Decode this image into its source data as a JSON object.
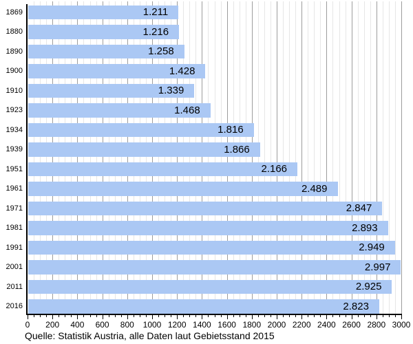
{
  "chart_data": {
    "type": "bar",
    "orientation": "horizontal",
    "title": "",
    "categories": [
      "1869",
      "1880",
      "1890",
      "1900",
      "1910",
      "1923",
      "1934",
      "1939",
      "1951",
      "1961",
      "1971",
      "1981",
      "1991",
      "2001",
      "2011",
      "2016"
    ],
    "values": [
      1211,
      1216,
      1258,
      1428,
      1339,
      1468,
      1816,
      1866,
      2166,
      2489,
      2847,
      2893,
      2949,
      2997,
      2925,
      2823
    ],
    "value_labels": [
      "1.211",
      "1.216",
      "1.258",
      "1.428",
      "1.339",
      "1.468",
      "1.816",
      "1.866",
      "2.166",
      "2.489",
      "2.847",
      "2.893",
      "2.949",
      "2.997",
      "2.925",
      "2.823"
    ],
    "xlim": [
      0,
      3000
    ],
    "x_major_step": 200,
    "x_minor_step": 50,
    "x_tick_labels": [
      "0",
      "200",
      "400",
      "600",
      "800",
      "1000",
      "1200",
      "1400",
      "1600",
      "1800",
      "2000",
      "2200",
      "2400",
      "2600",
      "2800",
      "3000"
    ],
    "grid": true,
    "legend": false
  },
  "footer": {
    "source": "Quelle: Statistik Austria, alle Daten laut Gebietsstand 2015"
  },
  "colors": {
    "bar": "#abc8f4",
    "grid_minor": "#e6e6e6",
    "grid_major": "#9c9c9c",
    "axis": "#000000",
    "text": "#000000"
  }
}
